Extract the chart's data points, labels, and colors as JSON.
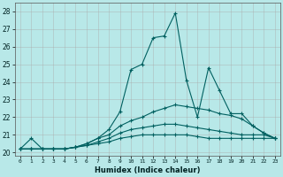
{
  "xlabel": "Humidex (Indice chaleur)",
  "xlim": [
    -0.5,
    23.5
  ],
  "ylim": [
    19.8,
    28.5
  ],
  "xticks": [
    0,
    1,
    2,
    3,
    4,
    5,
    6,
    7,
    8,
    9,
    10,
    11,
    12,
    13,
    14,
    15,
    16,
    17,
    18,
    19,
    20,
    21,
    22,
    23
  ],
  "yticks": [
    20,
    21,
    22,
    23,
    24,
    25,
    26,
    27,
    28
  ],
  "background_color": "#b8e8e8",
  "grid_color": "#aaaaaa",
  "line_color": "#006060",
  "lines": [
    [
      20.2,
      20.8,
      20.2,
      20.2,
      20.2,
      20.3,
      20.5,
      20.8,
      21.3,
      22.3,
      24.7,
      25.0,
      26.5,
      26.6,
      27.9,
      24.1,
      22.0,
      24.8,
      23.5,
      22.2,
      22.2,
      21.5,
      21.1,
      20.8
    ],
    [
      20.2,
      20.2,
      20.2,
      20.2,
      20.2,
      20.3,
      20.5,
      20.8,
      21.0,
      21.5,
      21.8,
      22.0,
      22.3,
      22.5,
      22.7,
      22.6,
      22.5,
      22.4,
      22.2,
      22.1,
      21.9,
      21.5,
      21.1,
      20.8
    ],
    [
      20.2,
      20.2,
      20.2,
      20.2,
      20.2,
      20.3,
      20.4,
      20.6,
      20.8,
      21.1,
      21.3,
      21.4,
      21.5,
      21.6,
      21.6,
      21.5,
      21.4,
      21.3,
      21.2,
      21.1,
      21.0,
      21.0,
      21.0,
      20.8
    ],
    [
      20.2,
      20.2,
      20.2,
      20.2,
      20.2,
      20.3,
      20.4,
      20.5,
      20.6,
      20.8,
      20.9,
      21.0,
      21.0,
      21.0,
      21.0,
      21.0,
      20.9,
      20.8,
      20.8,
      20.8,
      20.8,
      20.8,
      20.8,
      20.8
    ]
  ]
}
